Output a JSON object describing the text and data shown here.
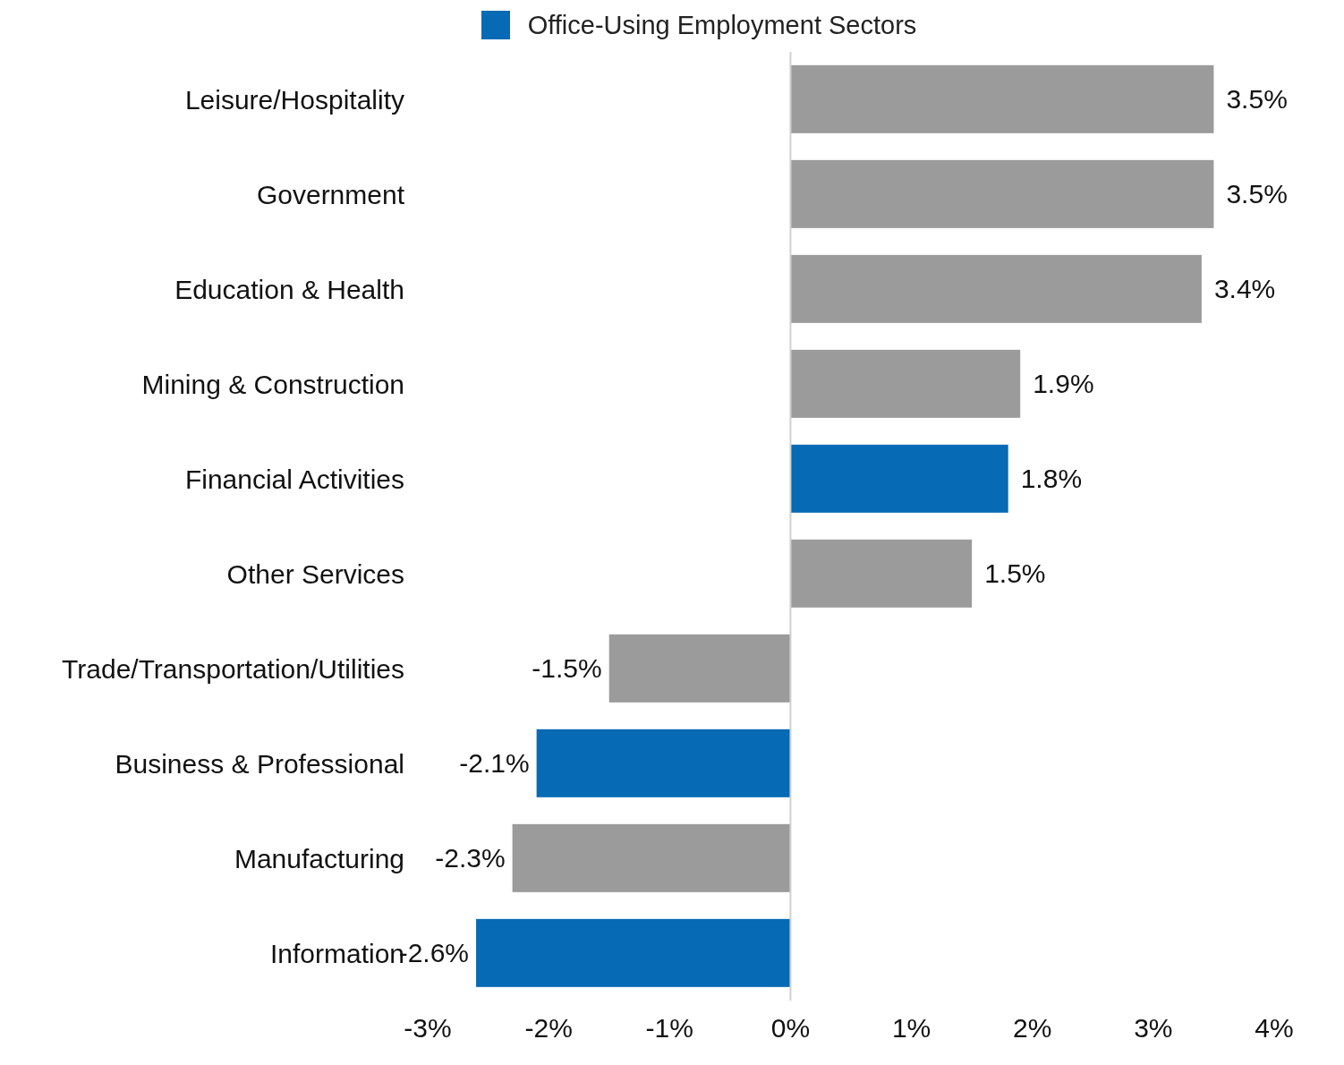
{
  "chart_data": {
    "type": "bar",
    "orientation": "horizontal",
    "stacked": true,
    "categories": [
      "Leisure/Hospitality",
      "Government",
      "Education & Health",
      "Mining & Construction",
      "Financial Activities",
      "Other Services",
      "Trade/Transportation/Utilities",
      "Business & Professional",
      "Manufacturing",
      "Information"
    ],
    "series": [
      {
        "name": "Office-Using Employment Sectors",
        "color": "#066ab4",
        "values": [
          null,
          null,
          null,
          null,
          1.8,
          null,
          null,
          -2.1,
          null,
          -2.6
        ],
        "value_labels": [
          null,
          null,
          null,
          null,
          "1.8%",
          null,
          null,
          "-2.1%",
          null,
          "-2.6%"
        ]
      },
      {
        "color": "#9b9b9b",
        "values": [
          3.5,
          3.5,
          3.4,
          1.9,
          null,
          1.5,
          -1.5,
          null,
          -2.3,
          null
        ],
        "value_labels": [
          "3.5%",
          "3.5%",
          "3.4%",
          "1.9%",
          null,
          "1.5%",
          "-1.5%",
          null,
          "-2.3%",
          null
        ]
      }
    ],
    "xlim": [
      -3,
      4
    ],
    "xticks": [
      {
        "value": -3,
        "label": "-3%"
      },
      {
        "value": -2,
        "label": "-2%"
      },
      {
        "value": -1,
        "label": "-1%"
      },
      {
        "value": 0,
        "label": "0%"
      },
      {
        "value": 1,
        "label": "1%"
      },
      {
        "value": 2,
        "label": "2%"
      },
      {
        "value": 3,
        "label": "3%"
      },
      {
        "value": 4,
        "label": "4%"
      }
    ],
    "grid": false,
    "ref_lines": [
      {
        "axis": "x",
        "value": 0,
        "color": "#d0d0d0"
      }
    ],
    "legend": "top"
  }
}
